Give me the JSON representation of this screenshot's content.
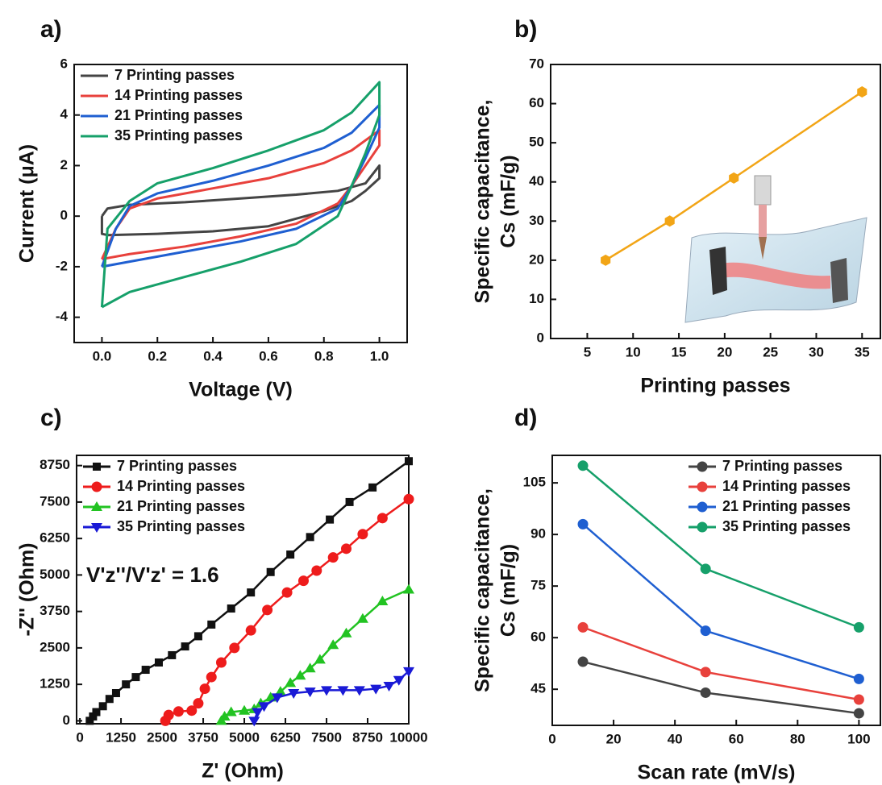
{
  "chart_data": [
    {
      "type": "line",
      "panel": "a)",
      "xlabel": "Voltage (V)",
      "ylabel": [
        "Current (μA)"
      ],
      "legend": "upper left",
      "xlim": [
        -0.1,
        1.1
      ],
      "ylim": [
        -5,
        6
      ],
      "xticks": [
        {
          "value": 0,
          "label": "0.0"
        },
        {
          "value": 0.2,
          "label": "0.2"
        },
        {
          "value": 0.4,
          "label": "0.4"
        },
        {
          "value": 0.6,
          "label": "0.6"
        },
        {
          "value": 0.8,
          "label": "0.8"
        },
        {
          "value": 1,
          "label": "1.0"
        }
      ],
      "yticks": [
        -4,
        -2,
        0,
        2,
        4,
        6
      ],
      "series": [
        {
          "name": "7 Printing passes",
          "color": "#444444",
          "x": [
            0,
            0.02,
            0.1,
            0.3,
            0.5,
            0.7,
            0.85,
            0.95,
            1.0,
            1.0,
            0.95,
            0.9,
            0.8,
            0.6,
            0.4,
            0.2,
            0.02,
            0,
            0
          ],
          "values": [
            0,
            0.3,
            0.45,
            0.55,
            0.7,
            0.85,
            1.0,
            1.3,
            2.0,
            1.5,
            1.0,
            0.6,
            0.2,
            -0.4,
            -0.6,
            -0.7,
            -0.75,
            -0.7,
            0
          ]
        },
        {
          "name": "14 Printing passes",
          "color": "#e8413c",
          "x": [
            0,
            0.05,
            0.1,
            0.2,
            0.4,
            0.6,
            0.8,
            0.9,
            1.0,
            1.0,
            0.95,
            0.9,
            0.85,
            0.7,
            0.5,
            0.3,
            0.1,
            0
          ],
          "values": [
            -1.7,
            -0.5,
            0.3,
            0.7,
            1.1,
            1.5,
            2.1,
            2.6,
            3.4,
            2.8,
            2.0,
            1.2,
            0.5,
            -0.3,
            -0.8,
            -1.2,
            -1.5,
            -1.7
          ]
        },
        {
          "name": "21 Printing passes",
          "color": "#1f5fd1",
          "x": [
            0,
            0.05,
            0.1,
            0.2,
            0.4,
            0.6,
            0.8,
            0.9,
            1.0,
            1.0,
            0.95,
            0.9,
            0.85,
            0.7,
            0.5,
            0.3,
            0.1,
            0
          ],
          "values": [
            -2.0,
            -0.5,
            0.4,
            0.9,
            1.4,
            2.0,
            2.7,
            3.3,
            4.4,
            3.5,
            2.3,
            1.2,
            0.3,
            -0.5,
            -1.0,
            -1.4,
            -1.8,
            -2.0
          ]
        },
        {
          "name": "35 Printing passes",
          "color": "#16a06a",
          "x": [
            0,
            0.02,
            0.1,
            0.2,
            0.4,
            0.6,
            0.8,
            0.9,
            1.0,
            1.0,
            0.95,
            0.9,
            0.85,
            0.7,
            0.5,
            0.3,
            0.1,
            0
          ],
          "values": [
            -3.6,
            -0.5,
            0.6,
            1.3,
            1.9,
            2.6,
            3.4,
            4.1,
            5.3,
            4.0,
            2.5,
            1.2,
            0.0,
            -1.1,
            -1.8,
            -2.4,
            -3.0,
            -3.6
          ]
        }
      ]
    },
    {
      "type": "line",
      "panel": "b)",
      "xlabel": "Printing passes",
      "ylabel": [
        "Specific capacitance,",
        "Cs (mF/g)"
      ],
      "xlim": [
        1,
        37
      ],
      "ylim": [
        0,
        70
      ],
      "xticks": [
        5,
        10,
        15,
        20,
        25,
        30,
        35
      ],
      "yticks": [
        0,
        10,
        20,
        30,
        40,
        50,
        60,
        70
      ],
      "x": [
        7,
        14,
        21,
        35
      ],
      "series": [
        {
          "color": "#f2a516",
          "marker": "hexagon",
          "values": [
            20,
            30,
            41,
            63
          ]
        }
      ]
    },
    {
      "type": "line",
      "panel": "c)",
      "xlabel": "Z' (Ohm)",
      "ylabel": [
        "-Z'' (Ohm)"
      ],
      "legend": "upper left",
      "annotation": "V'z''/V'z' = 1.6",
      "xlim": [
        -100,
        10000
      ],
      "ylim": [
        -100,
        9100
      ],
      "xticks": [
        0,
        1250,
        2500,
        3750,
        5000,
        6250,
        7500,
        8750,
        10000
      ],
      "yticks": [
        0,
        1250,
        2500,
        3750,
        5000,
        6250,
        7500,
        8750
      ],
      "series": [
        {
          "name": "7 Printing passes",
          "color": "#111111",
          "marker": "square",
          "x": [
            300,
            400,
            500,
            700,
            900,
            1100,
            1400,
            1700,
            2000,
            2400,
            2800,
            3200,
            3600,
            4000,
            4600,
            5200,
            5800,
            6400,
            7000,
            7600,
            8200,
            8900,
            10000
          ],
          "values": [
            0,
            150,
            300,
            500,
            750,
            950,
            1250,
            1500,
            1750,
            2000,
            2250,
            2550,
            2900,
            3300,
            3850,
            4400,
            5100,
            5700,
            6300,
            6900,
            7500,
            8000,
            8900
          ]
        },
        {
          "name": "14 Printing passes",
          "color": "#ee1c1c",
          "marker": "circle",
          "x": [
            2600,
            2700,
            3000,
            3400,
            3600,
            3800,
            4000,
            4300,
            4700,
            5200,
            5700,
            6300,
            6800,
            7200,
            7700,
            8100,
            8600,
            9200,
            10000
          ],
          "values": [
            0,
            200,
            320,
            350,
            600,
            1100,
            1500,
            2000,
            2500,
            3100,
            3800,
            4400,
            4800,
            5150,
            5600,
            5900,
            6400,
            6950,
            7600
          ]
        },
        {
          "name": "21 Printing passes",
          "color": "#22c322",
          "marker": "triangle-up",
          "x": [
            4300,
            4400,
            4600,
            5000,
            5300,
            5500,
            5800,
            6100,
            6400,
            6700,
            7000,
            7300,
            7700,
            8100,
            8600,
            9200,
            10000
          ],
          "values": [
            0,
            150,
            300,
            350,
            400,
            600,
            800,
            1000,
            1300,
            1550,
            1800,
            2100,
            2600,
            3000,
            3500,
            4100,
            4500
          ]
        },
        {
          "name": "35 Printing passes",
          "color": "#1a1ad6",
          "marker": "triangle-down",
          "x": [
            5300,
            5400,
            5600,
            6000,
            6500,
            7000,
            7500,
            8000,
            8500,
            9000,
            9400,
            9700,
            10000
          ],
          "values": [
            0,
            300,
            500,
            800,
            950,
            1000,
            1050,
            1050,
            1050,
            1100,
            1200,
            1400,
            1700
          ]
        }
      ]
    },
    {
      "type": "line",
      "panel": "d)",
      "xlabel": "Scan rate (mV/s)",
      "ylabel": [
        "Specific capacitance,",
        "Cs (mF/g)"
      ],
      "legend": "upper right",
      "xlim": [
        0,
        107
      ],
      "ylim": [
        34.5,
        113
      ],
      "xticks": [
        0,
        20,
        40,
        60,
        80,
        100
      ],
      "yticks": [
        45,
        60,
        75,
        90,
        105
      ],
      "x": [
        10,
        50,
        100
      ],
      "series": [
        {
          "name": "7 Printing passes",
          "color": "#444444",
          "marker": "circle",
          "values": [
            53,
            44,
            38
          ]
        },
        {
          "name": "14 Printing passes",
          "color": "#e8413c",
          "marker": "circle",
          "values": [
            63,
            50,
            42
          ]
        },
        {
          "name": "21 Printing passes",
          "color": "#1f5fd1",
          "marker": "circle",
          "values": [
            93,
            62,
            48
          ]
        },
        {
          "name": "35 Printing passes",
          "color": "#16a06a",
          "marker": "circle",
          "values": [
            110,
            80,
            63
          ]
        }
      ]
    }
  ]
}
